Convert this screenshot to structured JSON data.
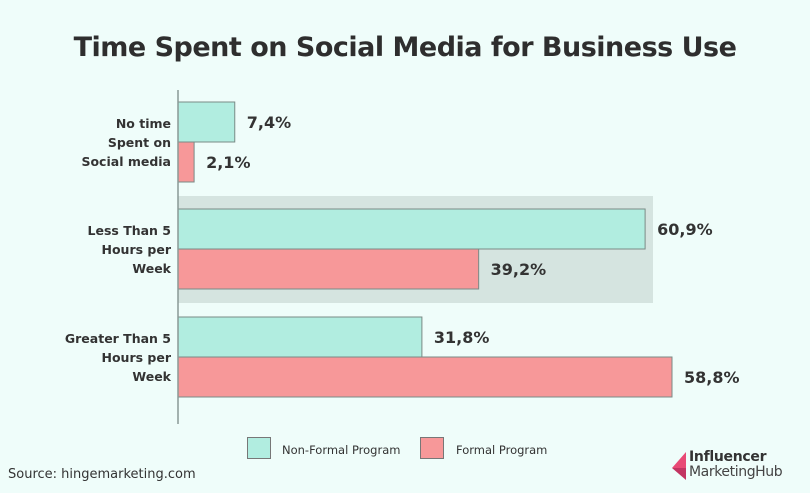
{
  "chart_data": {
    "type": "bar",
    "orientation": "horizontal",
    "title": "Time Spent on Social Media for Business Use",
    "categories": [
      "No time Spent on Social media",
      "Less Than 5 Hours per Week",
      "Greater Than 5 Hours per Week"
    ],
    "category_lines": [
      [
        "No time",
        "Spent on",
        "Social media"
      ],
      [
        "Less Than 5",
        "Hours per",
        "Week"
      ],
      [
        "Greater Than 5",
        "Hours per",
        "Week"
      ]
    ],
    "series": [
      {
        "name": "Non-Formal Program",
        "color": "#b1ede0",
        "values": [
          7.4,
          60.9,
          31.8
        ],
        "labels": [
          "7,4%",
          "60,9%",
          "31,8%"
        ]
      },
      {
        "name": "Formal Program",
        "color": "#f79899",
        "values": [
          2.1,
          39.2,
          58.8
        ],
        "labels": [
          "2,1%",
          "39,2%",
          "58,8%"
        ]
      }
    ],
    "highlighted_category": "Less Than 5 Hours per Week",
    "xlabel": "",
    "ylabel": "",
    "legend": "bottom",
    "grid": false
  },
  "source": "Source: hingemarketing.com",
  "logo": {
    "line1": "Influencer",
    "line2": "MarketingHub"
  }
}
